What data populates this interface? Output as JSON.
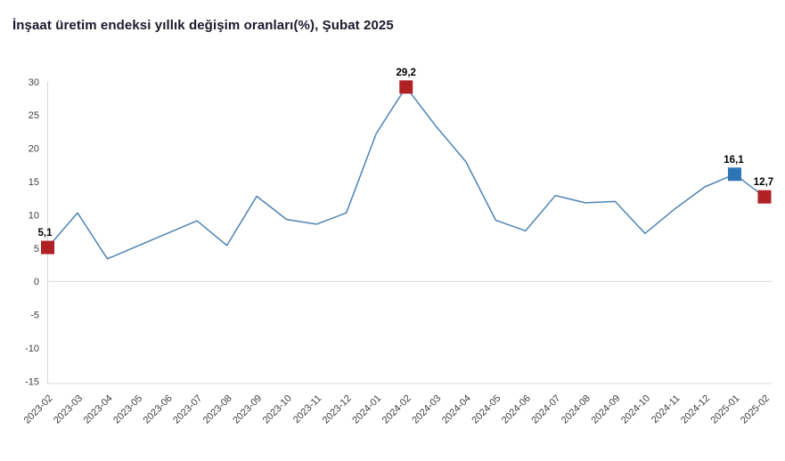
{
  "title": "İnşaat üretim endeksi yıllık değişim oranları(%), Şubat 2025",
  "chart_data": {
    "type": "line",
    "title": "İnşaat üretim endeksi yıllık değişim oranları(%), Şubat 2025",
    "categories": [
      "2023-02",
      "2023-03",
      "2023-04",
      "2023-05",
      "2023-06",
      "2023-07",
      "2023-08",
      "2023-09",
      "2023-10",
      "2023-11",
      "2023-12",
      "2024-01",
      "2024-02",
      "2024-03",
      "2024-04",
      "2024-05",
      "2024-06",
      "2024-07",
      "2024-08",
      "2024-09",
      "2024-10",
      "2024-11",
      "2024-12",
      "2025-01",
      "2025-02"
    ],
    "values": [
      5.1,
      10.3,
      3.4,
      5.3,
      7.2,
      9.1,
      5.4,
      12.8,
      9.3,
      8.6,
      10.3,
      22.2,
      29.2,
      23.3,
      18.0,
      9.2,
      7.6,
      12.9,
      11.8,
      12.0,
      7.2,
      10.9,
      14.2,
      16.1,
      12.7
    ],
    "xlabel": "",
    "ylabel": "",
    "ylim": [
      -15,
      30
    ],
    "yticks": [
      30,
      25,
      20,
      15,
      10,
      5,
      0,
      -5,
      -10,
      -15
    ],
    "grid": "zero-line-and-bottom-border-only",
    "legend": "none",
    "labeled_points": [
      {
        "category": "2023-02",
        "label": "5,1",
        "marker_color": "#b02126",
        "label_dx": -3
      },
      {
        "category": "2024-02",
        "label": "29,2",
        "marker_color": "#b02126",
        "label_dx": 0
      },
      {
        "category": "2025-01",
        "label": "16,1",
        "marker_color": "#2e75b6",
        "label_dx": -1
      },
      {
        "category": "2025-02",
        "label": "12,7",
        "marker_color": "#b02126",
        "label_dx": -1
      }
    ],
    "colors": {
      "line": "#4e84b4",
      "axis": "#d9d9d9",
      "tick_text": "#3f3f3f",
      "point_label_text": "#000000",
      "title_text": "#1a1a2b",
      "background": "#ffffff"
    }
  }
}
